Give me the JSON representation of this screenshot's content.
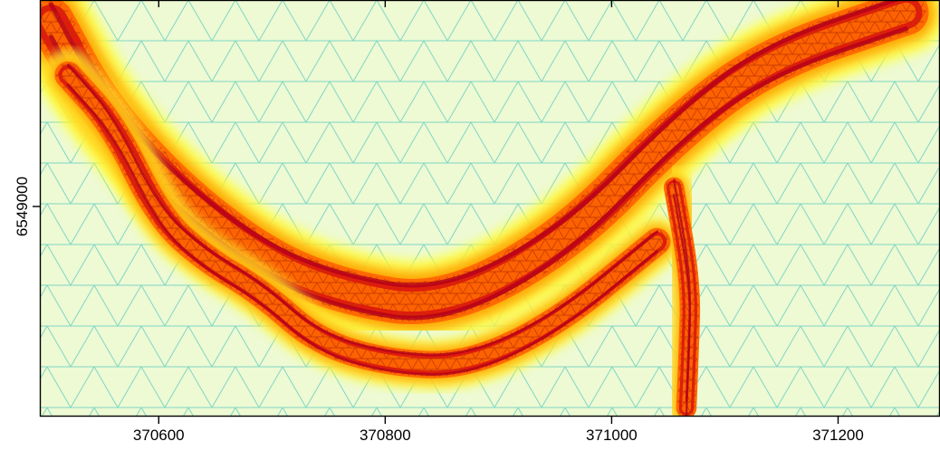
{
  "chart_data": {
    "type": "heatmap",
    "subtype": "triangular-mesh",
    "title": "",
    "xlabel": "",
    "ylabel": "",
    "xlim": [
      370495,
      371290
    ],
    "x_ticks": [
      370600,
      370800,
      371000,
      371200
    ],
    "x_tick_labels": [
      "370600",
      "370800",
      "371000",
      "371200"
    ],
    "y_ticks": [
      6549000
    ],
    "y_tick_labels": [
      "6549000"
    ],
    "ticks_on_top_axis": true,
    "colormap": [
      "#b3001c",
      "#e11b0e",
      "#ff6a00",
      "#ffa200",
      "#ffff3a",
      "#cfee4e",
      "#86e884",
      "#5ee0d0"
    ],
    "channels": [
      {
        "name": "",
        "path": [
          [
            370505,
            0.95
          ],
          [
            370545,
            0.75
          ],
          [
            370610,
            0.55
          ],
          [
            370690,
            0.38
          ],
          [
            370760,
            0.3
          ],
          [
            370850,
            0.26
          ],
          [
            370960,
            0.42
          ],
          [
            371060,
            0.7
          ],
          [
            371140,
            0.86
          ],
          [
            371260,
            0.97
          ]
        ]
      },
      {
        "name": "",
        "path": [
          [
            370520,
            0.82
          ],
          [
            370560,
            0.7
          ],
          [
            370600,
            0.48
          ],
          [
            370640,
            0.38
          ],
          [
            370690,
            0.3
          ],
          [
            370740,
            0.18
          ],
          [
            370800,
            0.13
          ],
          [
            370870,
            0.12
          ],
          [
            370950,
            0.22
          ],
          [
            371040,
            0.42
          ]
        ]
      },
      {
        "name": "",
        "path": [
          [
            371055,
            0.55
          ],
          [
            371070,
            0.32
          ],
          [
            371068,
            0.15
          ],
          [
            371066,
            0.02
          ]
        ]
      }
    ]
  }
}
